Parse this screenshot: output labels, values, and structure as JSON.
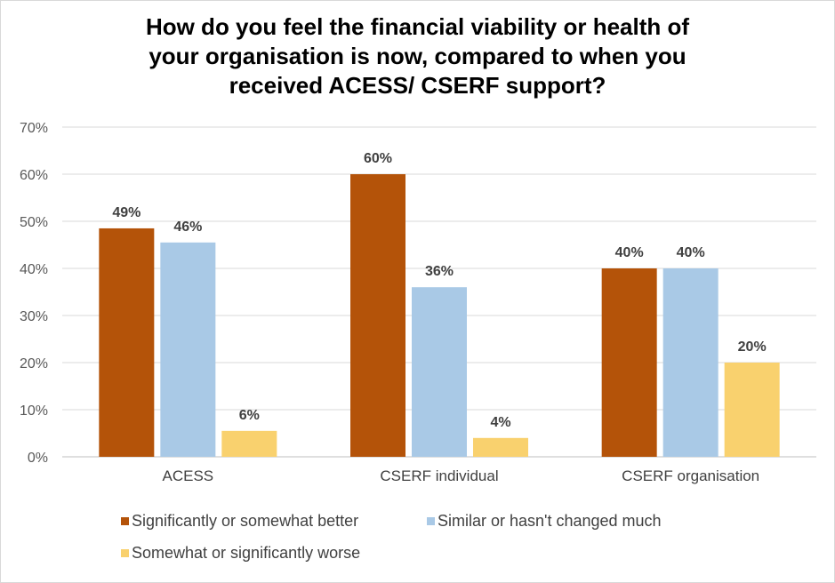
{
  "chart_data": {
    "type": "bar",
    "title_lines": [
      "How do you feel the financial viability or health of",
      "your organisation is now, compared to when you",
      "received ACESS/  CSERF support?"
    ],
    "categories": [
      "ACESS",
      "CSERF individual",
      "CSERF organisation"
    ],
    "series": [
      {
        "name": "Significantly or somewhat better",
        "values": [
          48.5,
          60,
          40
        ],
        "labels": [
          "49%",
          "60%",
          "40%"
        ],
        "color": "#b45309"
      },
      {
        "name": "Similar or hasn't changed much",
        "values": [
          45.5,
          36,
          40
        ],
        "labels": [
          "46%",
          "36%",
          "40%"
        ],
        "color": "#a9c9e6"
      },
      {
        "name": "Somewhat or significantly worse",
        "values": [
          5.5,
          4,
          20
        ],
        "labels": [
          "6%",
          "4%",
          "20%"
        ],
        "color": "#f9d16e"
      }
    ],
    "ylim": [
      0,
      70
    ],
    "yticks": [
      "0%",
      "10%",
      "20%",
      "30%",
      "40%",
      "50%",
      "60%",
      "70%"
    ],
    "grid": true,
    "legend_position": "bottom"
  }
}
